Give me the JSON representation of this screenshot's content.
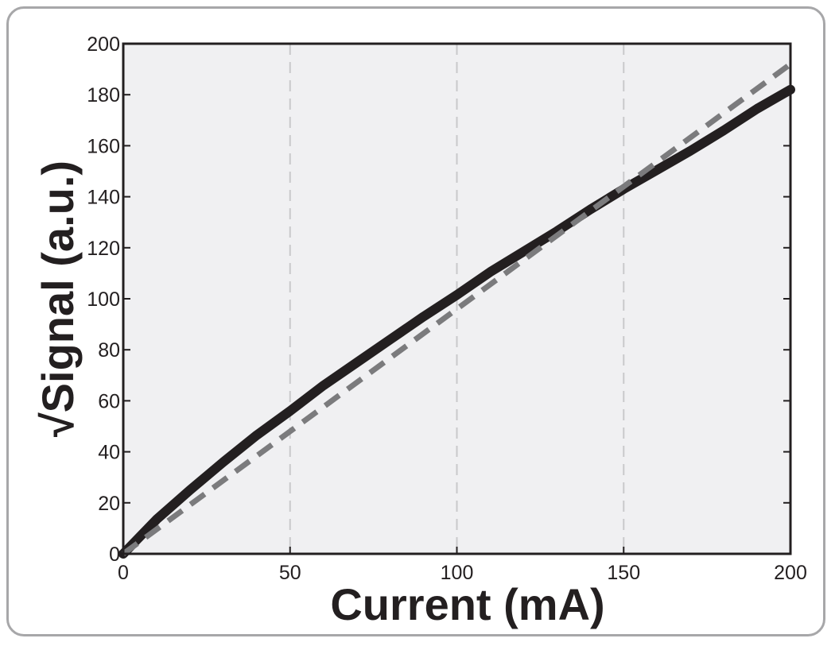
{
  "chart_data": {
    "type": "line",
    "xlabel": "Current (mA)",
    "ylabel": "√Signal (a.u.)",
    "xlim": [
      0,
      200
    ],
    "ylim": [
      0,
      200
    ],
    "x_ticks": [
      0,
      50,
      100,
      150,
      200
    ],
    "y_ticks": [
      0,
      20,
      40,
      60,
      80,
      100,
      120,
      140,
      160,
      180,
      200
    ],
    "grid": "vertical dashed at x ticks",
    "background_color": "#f0f0f2",
    "series": [
      {
        "style": "solid",
        "color": "#231f20",
        "x": [
          0,
          10,
          20,
          30,
          40,
          50,
          60,
          70,
          80,
          90,
          100,
          110,
          120,
          130,
          140,
          150,
          160,
          170,
          180,
          190,
          200
        ],
        "y": [
          0,
          13.5,
          25,
          36,
          46.5,
          56,
          66,
          75,
          84,
          93,
          101.5,
          110.5,
          118.5,
          126.5,
          135,
          143,
          150.5,
          158,
          166,
          174.5,
          182
        ]
      },
      {
        "style": "dashed",
        "color": "#7b7b7d",
        "x": [
          0,
          200
        ],
        "y": [
          0,
          192
        ]
      }
    ]
  }
}
